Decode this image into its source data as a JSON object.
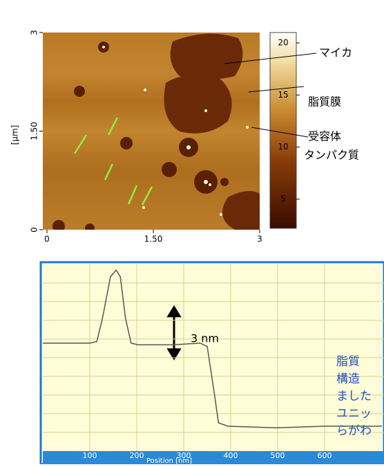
{
  "afm": {
    "ylabel": "[µm]",
    "xlim": [
      0,
      3
    ],
    "xticks": [
      0,
      {
        "value": 1.5,
        "label": "1.50"
      },
      3
    ],
    "yticks": [
      0,
      {
        "value": 1.5,
        "label": "1.50"
      },
      3
    ],
    "clim": [
      2.2,
      21
    ],
    "cticks": [
      5,
      10,
      15,
      20
    ],
    "annotations": [
      "マイカ",
      "脂質膜",
      "受容体",
      "タンパク質"
    ]
  },
  "chart_data": {
    "type": "line",
    "xlabel": "Position [nm]",
    "x": [
      0,
      100,
      115,
      127,
      144,
      156,
      165,
      176,
      188,
      203,
      276,
      335,
      350,
      365,
      374,
      394,
      497,
      600,
      722
    ],
    "values": [
      5.0,
      5.0,
      5.1,
      6.5,
      9.0,
      9.4,
      9.0,
      6.5,
      5.0,
      4.9,
      4.9,
      5.0,
      4.8,
      2.0,
      0.2,
      0,
      -0.1,
      0,
      0
    ],
    "color": "#555555",
    "xlim": [
      0,
      722
    ],
    "ylim": [
      -1.5,
      9.75
    ],
    "xticks": [
      100,
      200,
      300,
      400,
      500,
      600
    ],
    "grid": true,
    "annotation": "3 nm"
  },
  "caption_fragments": [
    "脂質",
    "構造",
    "ました",
    "ユニッ",
    "らがわ"
  ]
}
